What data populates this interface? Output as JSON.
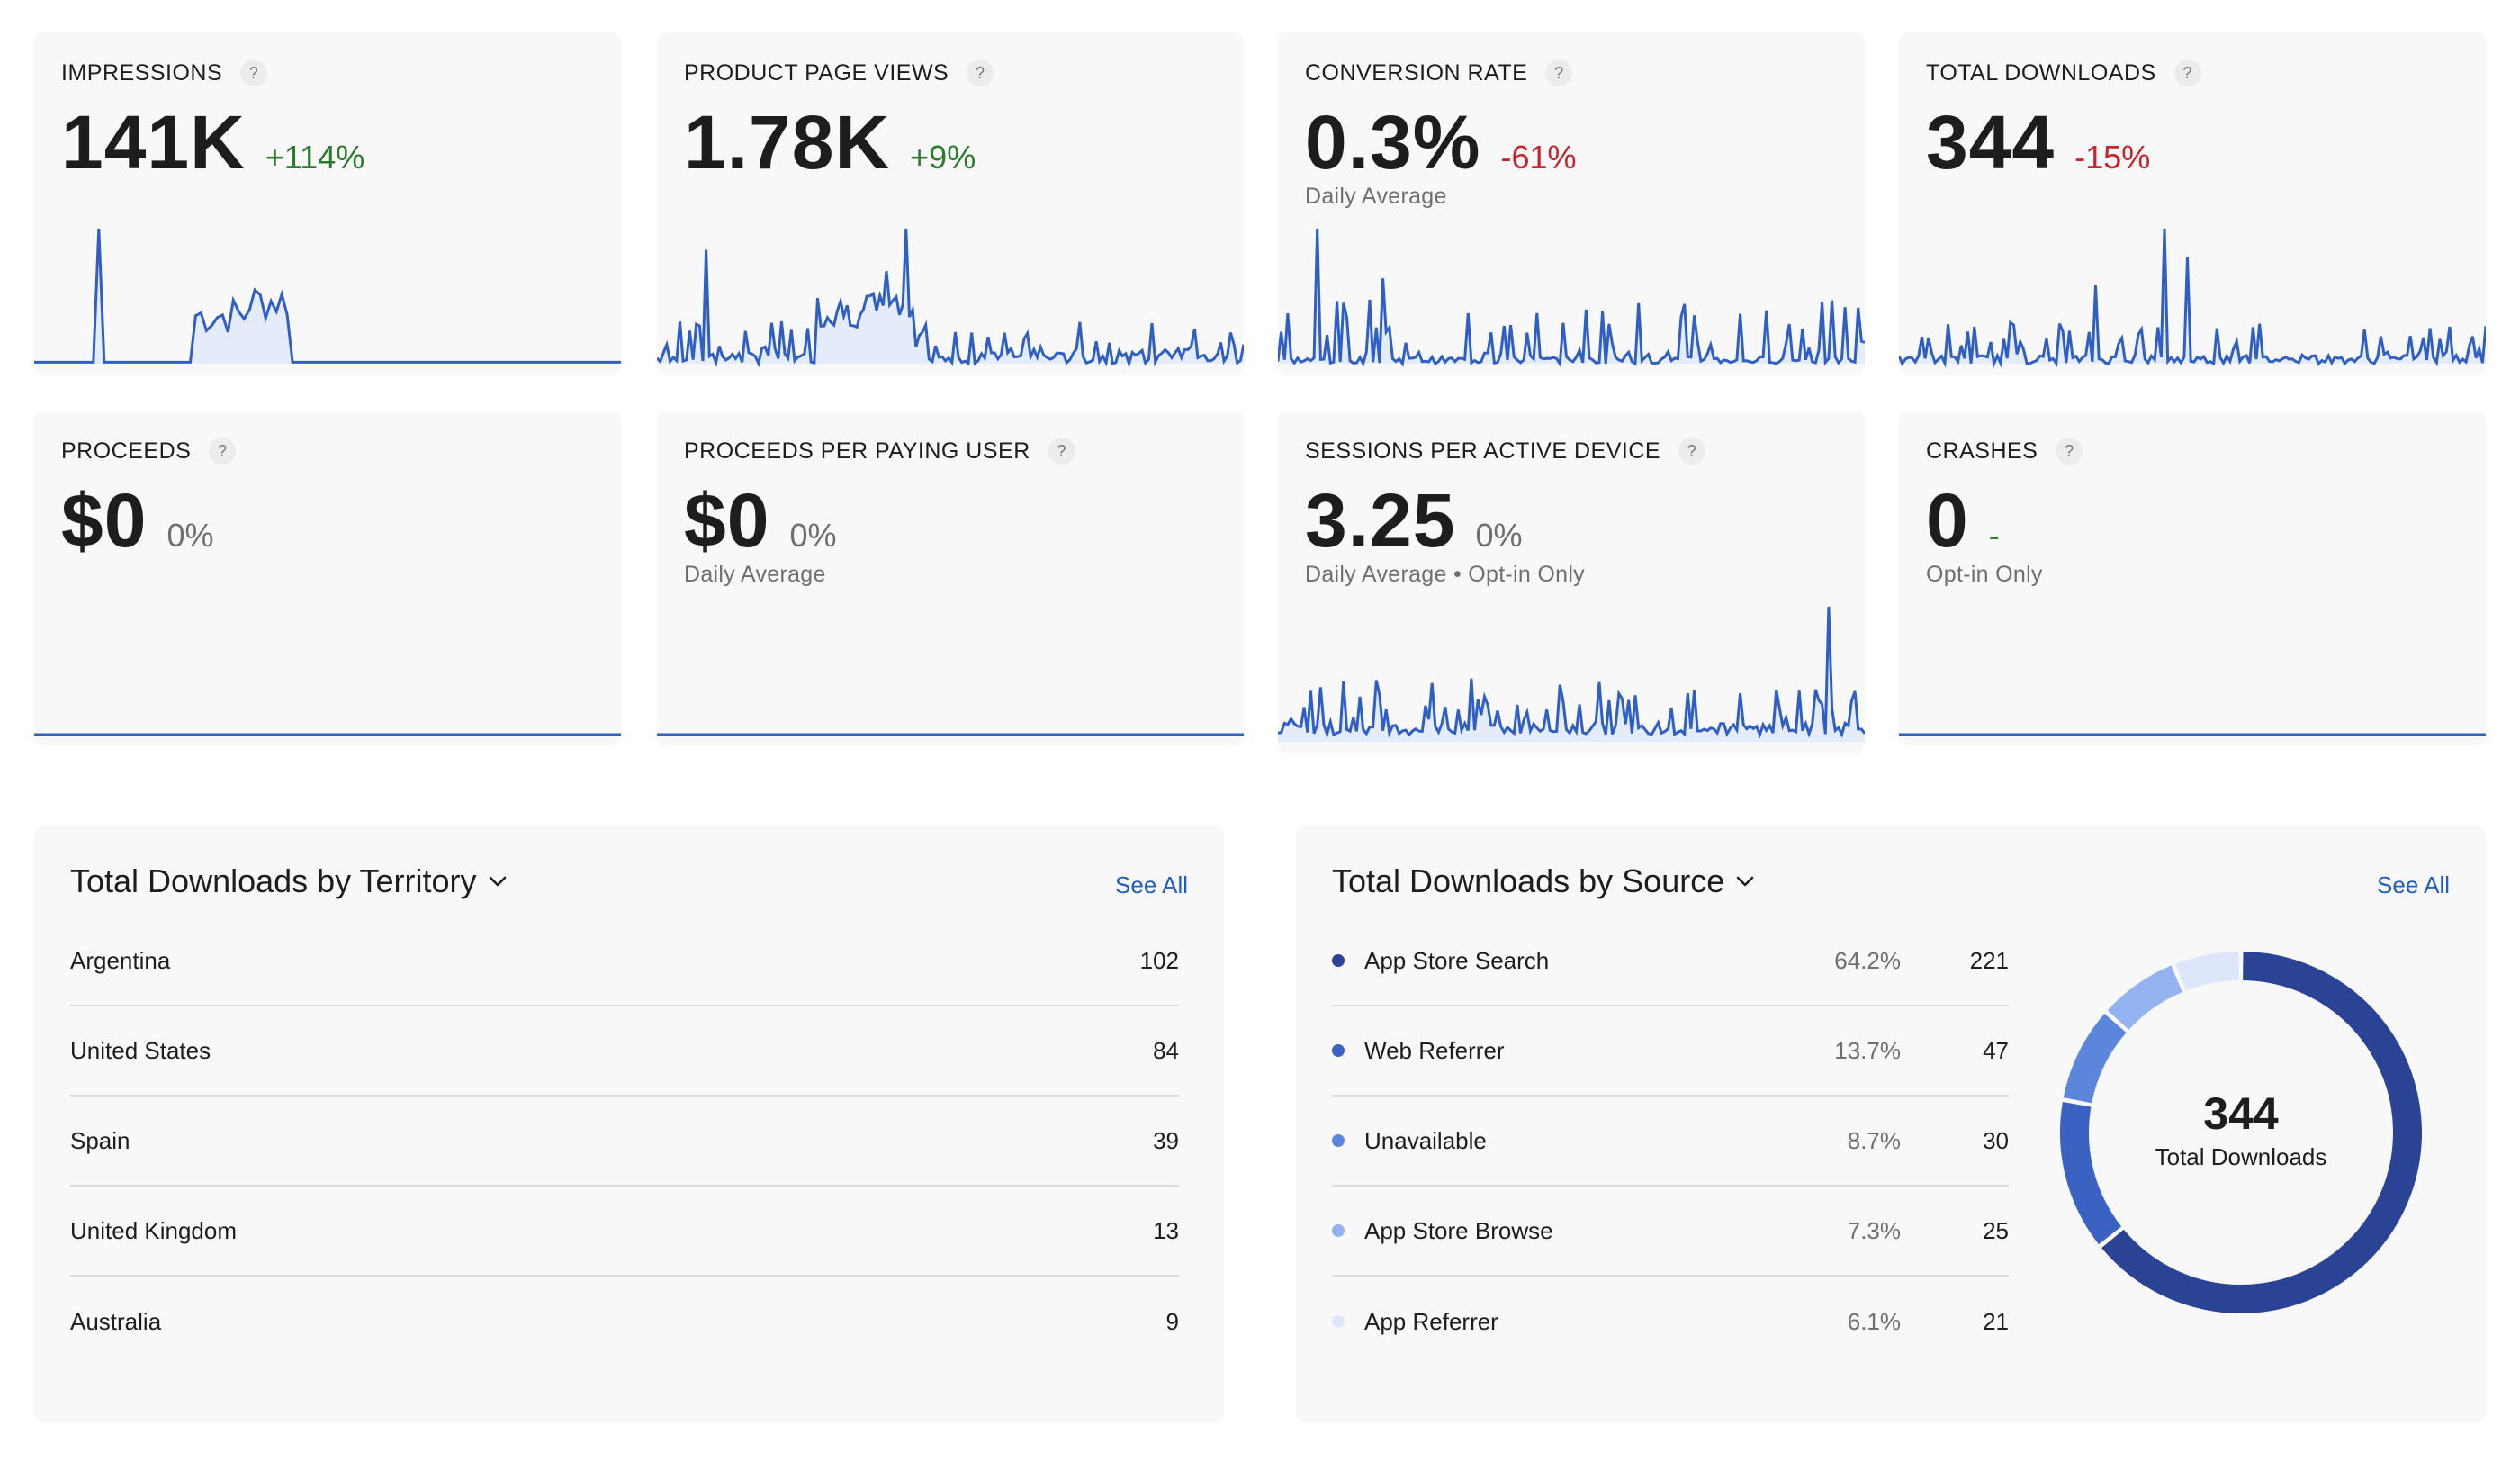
{
  "metrics": [
    {
      "title": "IMPRESSIONS",
      "value": "141K",
      "change": "+114%",
      "sub": ""
    },
    {
      "title": "PRODUCT PAGE VIEWS",
      "value": "1.78K",
      "change": "+9%",
      "sub": ""
    },
    {
      "title": "CONVERSION RATE",
      "value": "0.3%",
      "change": "-61%",
      "sub": "Daily Average"
    },
    {
      "title": "TOTAL DOWNLOADS",
      "value": "344",
      "change": "-15%",
      "sub": ""
    },
    {
      "title": "PROCEEDS",
      "value": "$0",
      "change": "0%",
      "sub": ""
    },
    {
      "title": "PROCEEDS PER PAYING USER",
      "value": "$0",
      "change": "0%",
      "sub": "Daily Average"
    },
    {
      "title": "SESSIONS PER ACTIVE DEVICE",
      "value": "3.25",
      "change": "0%",
      "sub": "Daily Average • Opt-in Only"
    },
    {
      "title": "CRASHES",
      "value": "0",
      "change": "-",
      "sub": "Opt-in Only"
    }
  ],
  "help_glyph": "?",
  "territory": {
    "title": "Total Downloads by Territory",
    "see_all": "See All",
    "rows": [
      {
        "name": "Argentina",
        "count": "102"
      },
      {
        "name": "United States",
        "count": "84"
      },
      {
        "name": "Spain",
        "count": "39"
      },
      {
        "name": "United Kingdom",
        "count": "13"
      },
      {
        "name": "Australia",
        "count": "9"
      }
    ]
  },
  "source": {
    "title": "Total Downloads by Source",
    "see_all": "See All",
    "rows": [
      {
        "name": "App Store Search",
        "pct": "64.2%",
        "count": "221",
        "color": "#2a4394"
      },
      {
        "name": "Web Referrer",
        "pct": "13.7%",
        "count": "47",
        "color": "#3a62c2"
      },
      {
        "name": "Unavailable",
        "pct": "8.7%",
        "count": "30",
        "color": "#5b86db"
      },
      {
        "name": "App Store Browse",
        "pct": "7.3%",
        "count": "25",
        "color": "#93b2ef"
      },
      {
        "name": "App Referrer",
        "pct": "6.1%",
        "count": "21",
        "color": "#dde6fb"
      }
    ],
    "donut_total": "344",
    "donut_label": "Total Downloads"
  },
  "colors": {
    "line": "#2f5fc4",
    "fill": "#e4ecfa"
  }
}
